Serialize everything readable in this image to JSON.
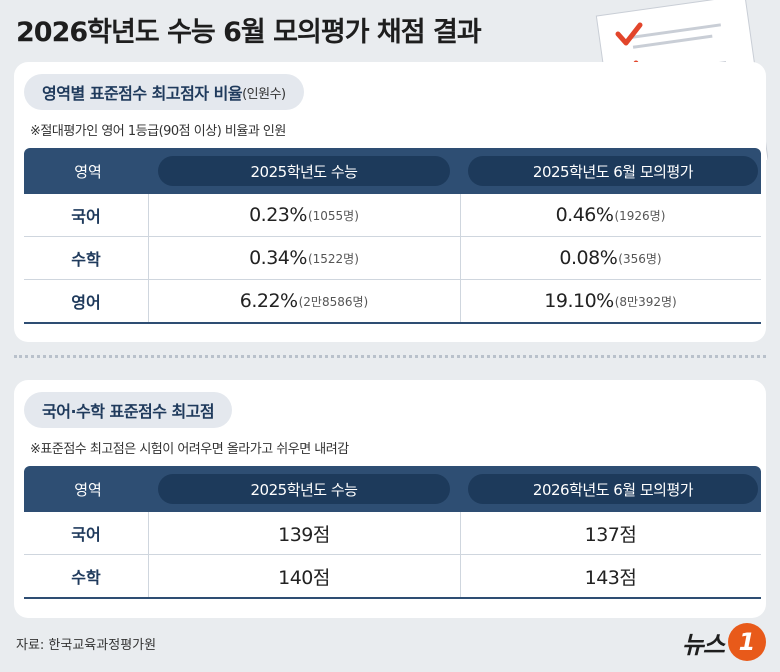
{
  "title": "2026학년도 수능 6월 모의평가 채점 결과",
  "section1": {
    "heading": "영역별 표준점수 최고점자 비율",
    "heading_sub": "(인원수)",
    "note": "※절대평가인 영어 1등급(90점 이상) 비율과 인원",
    "headers": [
      "영역",
      "2025학년도  수능",
      "2025학년도 6월 모의평가"
    ],
    "rows": [
      {
        "area": "국어",
        "v1": "0.23%",
        "n1": "(1055명)",
        "v2": "0.46%",
        "n2": "(1926명)"
      },
      {
        "area": "수학",
        "v1": "0.34%",
        "n1": "(1522명)",
        "v2": "0.08%",
        "n2": "(356명)"
      },
      {
        "area": "영어",
        "v1": "6.22%",
        "n1": "(2만8586명)",
        "v2": "19.10%",
        "n2": "(8만392명)"
      }
    ]
  },
  "section2": {
    "heading": "국어·수학 표준점수 최고점",
    "note": "※표준점수 최고점은 시험이 어려우면 올라가고 쉬우면 내려감",
    "headers": [
      "영역",
      "2025학년도  수능",
      "2026학년도 6월 모의평가"
    ],
    "rows": [
      {
        "area": "국어",
        "v1": "139점",
        "v2": "137점"
      },
      {
        "area": "수학",
        "v1": "140점",
        "v2": "143점"
      }
    ]
  },
  "source": "자료: 한국교육과정평가원",
  "logo": {
    "text": "뉴스",
    "mark": "1"
  },
  "colors": {
    "header": "#2e4e73",
    "header_pill": "#1d3a5b",
    "check": "#e2452b",
    "logo": "#e85a1a"
  }
}
